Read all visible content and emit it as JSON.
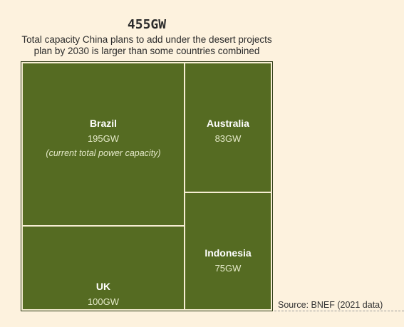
{
  "title": "455GW",
  "subtitle_line1": "Total capacity China plans to add under the desert projects",
  "subtitle_line2": "plan by 2030 is larger than some countries combined",
  "source": "Source: BNEF (2021 data)",
  "colors": {
    "fill": "#556b22",
    "border": "#2f3b16",
    "divider": "#f6edd3",
    "text": "#ffffff",
    "subtext": "#e4e9c8"
  },
  "chart_data": {
    "type": "treemap",
    "total": 455,
    "unit": "GW",
    "items": [
      {
        "name": "Brazil",
        "value": 195,
        "label": "195GW",
        "note": "(current total power capacity)"
      },
      {
        "name": "UK",
        "value": 100,
        "label": "100GW"
      },
      {
        "name": "Australia",
        "value": 83,
        "label": "83GW"
      },
      {
        "name": "Indonesia",
        "value": 75,
        "label": "75GW"
      }
    ]
  }
}
